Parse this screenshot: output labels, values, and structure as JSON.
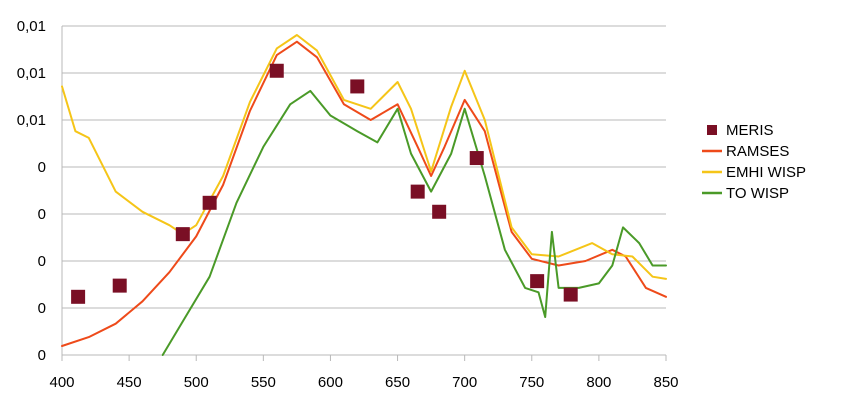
{
  "chart_data": {
    "type": "line",
    "title": "",
    "xlabel": "",
    "ylabel": "",
    "xlim": [
      400,
      850
    ],
    "x_ticks": [
      "400",
      "450",
      "500",
      "550",
      "600",
      "650",
      "700",
      "750",
      "800",
      "850"
    ],
    "y_ticks": [
      "0",
      "0",
      "0",
      "0",
      "0",
      "0,01",
      "0,01",
      "0,01"
    ],
    "ylim": [
      0,
      0.0147
    ],
    "grid": "horizontal",
    "legend_position": "right",
    "series": [
      {
        "name": "MERIS",
        "kind": "markers",
        "color": "#7a0f25",
        "points": [
          [
            412,
            0.0026
          ],
          [
            443,
            0.0031
          ],
          [
            490,
            0.0054
          ],
          [
            510,
            0.0068
          ],
          [
            560,
            0.0127
          ],
          [
            620,
            0.012
          ],
          [
            665,
            0.0073
          ],
          [
            681,
            0.0064
          ],
          [
            709,
            0.0088
          ],
          [
            754,
            0.0033
          ],
          [
            779,
            0.0027
          ]
        ]
      },
      {
        "name": "RAMSES",
        "kind": "line",
        "color": "#ee4a1a",
        "points": [
          [
            400,
            0.0004
          ],
          [
            420,
            0.0008
          ],
          [
            440,
            0.0014
          ],
          [
            460,
            0.0024
          ],
          [
            480,
            0.0037
          ],
          [
            500,
            0.0053
          ],
          [
            520,
            0.0076
          ],
          [
            540,
            0.0109
          ],
          [
            560,
            0.0134
          ],
          [
            575,
            0.014
          ],
          [
            590,
            0.0133
          ],
          [
            610,
            0.0112
          ],
          [
            630,
            0.0105
          ],
          [
            650,
            0.0112
          ],
          [
            665,
            0.0093
          ],
          [
            675,
            0.008
          ],
          [
            685,
            0.0093
          ],
          [
            700,
            0.0114
          ],
          [
            715,
            0.01
          ],
          [
            735,
            0.0055
          ],
          [
            750,
            0.0043
          ],
          [
            770,
            0.004
          ],
          [
            790,
            0.0042
          ],
          [
            810,
            0.0047
          ],
          [
            820,
            0.0044
          ],
          [
            835,
            0.003
          ],
          [
            850,
            0.0026
          ]
        ]
      },
      {
        "name": "EMHI WISP",
        "kind": "line",
        "color": "#f5c518",
        "points": [
          [
            400,
            0.012
          ],
          [
            410,
            0.01
          ],
          [
            420,
            0.0097
          ],
          [
            440,
            0.0073
          ],
          [
            460,
            0.0064
          ],
          [
            480,
            0.0058
          ],
          [
            490,
            0.0054
          ],
          [
            500,
            0.0058
          ],
          [
            520,
            0.008
          ],
          [
            540,
            0.0113
          ],
          [
            560,
            0.0137
          ],
          [
            575,
            0.0143
          ],
          [
            590,
            0.0136
          ],
          [
            610,
            0.0114
          ],
          [
            630,
            0.011
          ],
          [
            650,
            0.0122
          ],
          [
            660,
            0.011
          ],
          [
            675,
            0.0082
          ],
          [
            690,
            0.0111
          ],
          [
            700,
            0.0127
          ],
          [
            715,
            0.0105
          ],
          [
            735,
            0.0057
          ],
          [
            750,
            0.0045
          ],
          [
            770,
            0.0044
          ],
          [
            795,
            0.005
          ],
          [
            810,
            0.0045
          ],
          [
            825,
            0.0044
          ],
          [
            840,
            0.0035
          ],
          [
            850,
            0.0034
          ]
        ]
      },
      {
        "name": "TO WISP",
        "kind": "line",
        "color": "#4a9a28",
        "points": [
          [
            475,
            0.0
          ],
          [
            490,
            0.0015
          ],
          [
            510,
            0.0035
          ],
          [
            530,
            0.0068
          ],
          [
            550,
            0.0093
          ],
          [
            570,
            0.0112
          ],
          [
            585,
            0.0118
          ],
          [
            600,
            0.0107
          ],
          [
            620,
            0.01
          ],
          [
            635,
            0.0095
          ],
          [
            650,
            0.011
          ],
          [
            660,
            0.009
          ],
          [
            675,
            0.0073
          ],
          [
            690,
            0.009
          ],
          [
            700,
            0.011
          ],
          [
            715,
            0.008
          ],
          [
            730,
            0.0047
          ],
          [
            745,
            0.003
          ],
          [
            755,
            0.0028
          ],
          [
            760,
            0.0017
          ],
          [
            765,
            0.0055
          ],
          [
            770,
            0.003
          ],
          [
            785,
            0.003
          ],
          [
            800,
            0.0032
          ],
          [
            810,
            0.004
          ],
          [
            818,
            0.0057
          ],
          [
            830,
            0.005
          ],
          [
            840,
            0.004
          ],
          [
            850,
            0.004
          ]
        ]
      }
    ]
  }
}
